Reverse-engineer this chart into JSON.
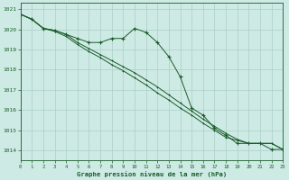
{
  "title": "Graphe pression niveau de la mer (hPa)",
  "bg_color": "#ceeae4",
  "grid_color": "#aacfc8",
  "line_color": "#1a5c2a",
  "xlim": [
    0,
    23
  ],
  "ylim": [
    1013.5,
    1021.3
  ],
  "yticks": [
    1014,
    1015,
    1016,
    1017,
    1018,
    1019,
    1020,
    1021
  ],
  "xticks": [
    0,
    1,
    2,
    3,
    4,
    5,
    6,
    7,
    8,
    9,
    10,
    11,
    12,
    13,
    14,
    15,
    16,
    17,
    18,
    19,
    20,
    21,
    22,
    23
  ],
  "series1_x": [
    0,
    1,
    2,
    3,
    4,
    5,
    6,
    7,
    8,
    9,
    10,
    11,
    12,
    13,
    14,
    15,
    16,
    17,
    18,
    19,
    20,
    21,
    22,
    23
  ],
  "series1_y": [
    1020.75,
    1020.5,
    1020.05,
    1019.95,
    1019.75,
    1019.55,
    1019.35,
    1019.35,
    1019.55,
    1019.55,
    1020.05,
    1019.85,
    1019.35,
    1018.65,
    1017.65,
    1016.1,
    1015.75,
    1015.1,
    1014.75,
    1014.35,
    1014.35,
    1014.35,
    1014.05,
    1014.05
  ],
  "series2_x": [
    0,
    1,
    2,
    3,
    4,
    5,
    6,
    7,
    8,
    9,
    10,
    11,
    12,
    13,
    14,
    15,
    16,
    17,
    18,
    19,
    20,
    21,
    22,
    23
  ],
  "series2_y": [
    1020.75,
    1020.5,
    1020.05,
    1019.95,
    1019.75,
    1019.35,
    1019.05,
    1018.75,
    1018.45,
    1018.15,
    1017.85,
    1017.5,
    1017.15,
    1016.75,
    1016.35,
    1015.95,
    1015.55,
    1015.2,
    1014.85,
    1014.55,
    1014.35,
    1014.35,
    1014.35,
    1014.05
  ],
  "series3_x": [
    0,
    1,
    2,
    3,
    4,
    5,
    6,
    7,
    8,
    9,
    10,
    11,
    12,
    13,
    14,
    15,
    16,
    17,
    18,
    19,
    20,
    21,
    22,
    23
  ],
  "series3_y": [
    1020.75,
    1020.5,
    1020.05,
    1019.9,
    1019.65,
    1019.25,
    1018.9,
    1018.6,
    1018.25,
    1017.95,
    1017.6,
    1017.25,
    1016.85,
    1016.5,
    1016.1,
    1015.75,
    1015.35,
    1015.0,
    1014.65,
    1014.5,
    1014.35,
    1014.35,
    1014.35,
    1014.05
  ]
}
